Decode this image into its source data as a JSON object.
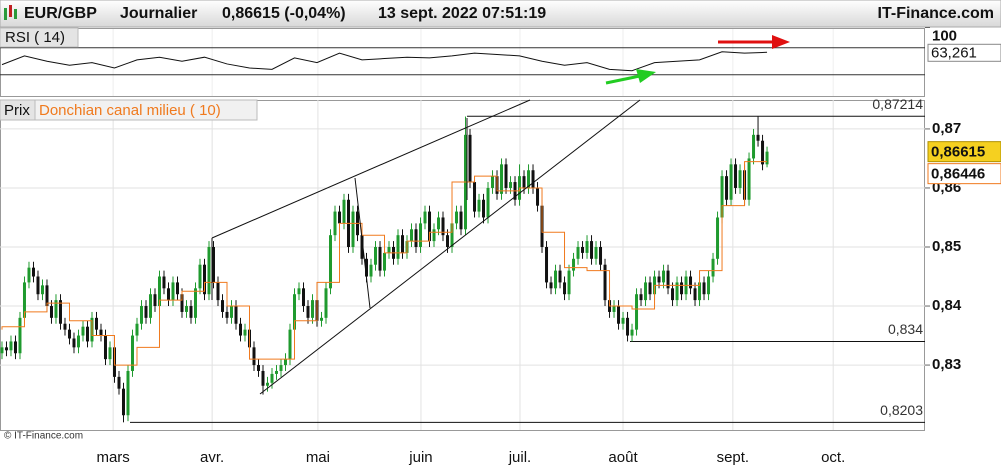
{
  "chart_data": {
    "type": "candlestick",
    "symbol": "EUR/GBP",
    "period": "Journalier",
    "quote": "0,86615 (-0,04%)",
    "date": "13 sept. 2022 07:51:19",
    "source": "IT-Finance.com",
    "copyright": "© IT-Finance.com",
    "price_name": "Prix",
    "up_color": "#1f9a2e",
    "down_color": "#111111",
    "ohlc": [
      [
        0.832,
        0.834,
        0.831,
        0.833
      ],
      [
        0.833,
        0.834,
        0.8315,
        0.8325
      ],
      [
        0.8325,
        0.835,
        0.8315,
        0.834
      ],
      [
        0.834,
        0.835,
        0.831,
        0.832
      ],
      [
        0.832,
        0.839,
        0.831,
        0.838
      ],
      [
        0.838,
        0.845,
        0.837,
        0.844
      ],
      [
        0.844,
        0.8475,
        0.843,
        0.8465
      ],
      [
        0.8465,
        0.8475,
        0.844,
        0.845
      ],
      [
        0.845,
        0.846,
        0.841,
        0.842
      ],
      [
        0.842,
        0.8445,
        0.841,
        0.8435
      ],
      [
        0.8435,
        0.8445,
        0.839,
        0.84
      ],
      [
        0.84,
        0.841,
        0.837,
        0.838
      ],
      [
        0.838,
        0.842,
        0.837,
        0.841
      ],
      [
        0.841,
        0.842,
        0.836,
        0.837
      ],
      [
        0.837,
        0.838,
        0.835,
        0.836
      ],
      [
        0.836,
        0.837,
        0.8335,
        0.8345
      ],
      [
        0.8345,
        0.8355,
        0.832,
        0.833
      ],
      [
        0.833,
        0.836,
        0.832,
        0.835
      ],
      [
        0.835,
        0.8375,
        0.834,
        0.8365
      ],
      [
        0.8365,
        0.8375,
        0.833,
        0.834
      ],
      [
        0.834,
        0.839,
        0.833,
        0.838
      ],
      [
        0.838,
        0.839,
        0.835,
        0.836
      ],
      [
        0.836,
        0.837,
        0.834,
        0.835
      ],
      [
        0.835,
        0.836,
        0.83,
        0.831
      ],
      [
        0.831,
        0.834,
        0.83,
        0.833
      ],
      [
        0.833,
        0.834,
        0.827,
        0.828
      ],
      [
        0.828,
        0.829,
        0.825,
        0.826
      ],
      [
        0.826,
        0.827,
        0.8203,
        0.8215
      ],
      [
        0.8215,
        0.83,
        0.8205,
        0.829
      ],
      [
        0.829,
        0.836,
        0.828,
        0.835
      ],
      [
        0.835,
        0.838,
        0.834,
        0.837
      ],
      [
        0.837,
        0.841,
        0.836,
        0.84
      ],
      [
        0.84,
        0.841,
        0.837,
        0.838
      ],
      [
        0.838,
        0.843,
        0.837,
        0.842
      ],
      [
        0.842,
        0.843,
        0.839,
        0.84
      ],
      [
        0.84,
        0.846,
        0.839,
        0.845
      ],
      [
        0.845,
        0.846,
        0.842,
        0.843
      ],
      [
        0.843,
        0.844,
        0.84,
        0.841
      ],
      [
        0.841,
        0.845,
        0.84,
        0.844
      ],
      [
        0.844,
        0.845,
        0.841,
        0.842
      ],
      [
        0.842,
        0.843,
        0.838,
        0.839
      ],
      [
        0.839,
        0.841,
        0.838,
        0.84
      ],
      [
        0.84,
        0.841,
        0.837,
        0.838
      ],
      [
        0.838,
        0.844,
        0.837,
        0.843
      ],
      [
        0.843,
        0.848,
        0.842,
        0.847
      ],
      [
        0.847,
        0.848,
        0.841,
        0.842
      ],
      [
        0.842,
        0.851,
        0.841,
        0.85
      ],
      [
        0.85,
        0.851,
        0.843,
        0.844
      ],
      [
        0.844,
        0.845,
        0.84,
        0.841
      ],
      [
        0.841,
        0.842,
        0.838,
        0.839
      ],
      [
        0.839,
        0.84,
        0.837,
        0.838
      ],
      [
        0.838,
        0.841,
        0.837,
        0.84
      ],
      [
        0.84,
        0.841,
        0.836,
        0.837
      ],
      [
        0.837,
        0.838,
        0.834,
        0.835
      ],
      [
        0.835,
        0.837,
        0.834,
        0.836
      ],
      [
        0.836,
        0.837,
        0.832,
        0.833
      ],
      [
        0.833,
        0.834,
        0.829,
        0.83
      ],
      [
        0.83,
        0.831,
        0.828,
        0.829
      ],
      [
        0.829,
        0.83,
        0.825,
        0.8265
      ],
      [
        0.8265,
        0.828,
        0.8255,
        0.827
      ],
      [
        0.827,
        0.8295,
        0.826,
        0.8285
      ],
      [
        0.8285,
        0.83,
        0.8275,
        0.829
      ],
      [
        0.829,
        0.831,
        0.828,
        0.83
      ],
      [
        0.83,
        0.832,
        0.829,
        0.831
      ],
      [
        0.831,
        0.837,
        0.83,
        0.836
      ],
      [
        0.836,
        0.843,
        0.835,
        0.842
      ],
      [
        0.842,
        0.844,
        0.841,
        0.843
      ],
      [
        0.843,
        0.844,
        0.839,
        0.84
      ],
      [
        0.84,
        0.841,
        0.837,
        0.838
      ],
      [
        0.838,
        0.842,
        0.837,
        0.841
      ],
      [
        0.841,
        0.842,
        0.8365,
        0.8375
      ],
      [
        0.8375,
        0.839,
        0.8365,
        0.838
      ],
      [
        0.838,
        0.844,
        0.837,
        0.843
      ],
      [
        0.843,
        0.853,
        0.842,
        0.852
      ],
      [
        0.852,
        0.857,
        0.851,
        0.856
      ],
      [
        0.856,
        0.857,
        0.853,
        0.854
      ],
      [
        0.854,
        0.859,
        0.853,
        0.858
      ],
      [
        0.858,
        0.859,
        0.849,
        0.85
      ],
      [
        0.85,
        0.857,
        0.849,
        0.856
      ],
      [
        0.856,
        0.857,
        0.851,
        0.852
      ],
      [
        0.852,
        0.853,
        0.847,
        0.848
      ],
      [
        0.848,
        0.849,
        0.844,
        0.845
      ],
      [
        0.845,
        0.848,
        0.844,
        0.847
      ],
      [
        0.847,
        0.851,
        0.846,
        0.85
      ],
      [
        0.85,
        0.851,
        0.845,
        0.846
      ],
      [
        0.846,
        0.85,
        0.845,
        0.849
      ],
      [
        0.849,
        0.851,
        0.848,
        0.85
      ],
      [
        0.85,
        0.851,
        0.847,
        0.848
      ],
      [
        0.848,
        0.853,
        0.847,
        0.852
      ],
      [
        0.852,
        0.853,
        0.848,
        0.849
      ],
      [
        0.849,
        0.852,
        0.848,
        0.851
      ],
      [
        0.851,
        0.854,
        0.85,
        0.853
      ],
      [
        0.853,
        0.854,
        0.849,
        0.85
      ],
      [
        0.85,
        0.855,
        0.849,
        0.854
      ],
      [
        0.854,
        0.857,
        0.853,
        0.856
      ],
      [
        0.856,
        0.857,
        0.85,
        0.851
      ],
      [
        0.851,
        0.854,
        0.85,
        0.853
      ],
      [
        0.853,
        0.856,
        0.852,
        0.855
      ],
      [
        0.855,
        0.856,
        0.851,
        0.852
      ],
      [
        0.852,
        0.853,
        0.849,
        0.85
      ],
      [
        0.85,
        0.855,
        0.849,
        0.854
      ],
      [
        0.854,
        0.857,
        0.853,
        0.856
      ],
      [
        0.856,
        0.857,
        0.852,
        0.853
      ],
      [
        0.853,
        0.8721,
        0.852,
        0.869
      ],
      [
        0.869,
        0.87,
        0.86,
        0.861
      ],
      [
        0.861,
        0.862,
        0.855,
        0.856
      ],
      [
        0.856,
        0.859,
        0.855,
        0.858
      ],
      [
        0.858,
        0.859,
        0.854,
        0.855
      ],
      [
        0.855,
        0.861,
        0.854,
        0.86
      ],
      [
        0.86,
        0.863,
        0.859,
        0.862
      ],
      [
        0.862,
        0.863,
        0.858,
        0.859
      ],
      [
        0.859,
        0.865,
        0.858,
        0.864
      ],
      [
        0.864,
        0.865,
        0.859,
        0.86
      ],
      [
        0.86,
        0.862,
        0.859,
        0.861
      ],
      [
        0.861,
        0.862,
        0.857,
        0.858
      ],
      [
        0.858,
        0.864,
        0.857,
        0.862
      ],
      [
        0.862,
        0.863,
        0.859,
        0.86
      ],
      [
        0.86,
        0.864,
        0.859,
        0.863
      ],
      [
        0.863,
        0.864,
        0.859,
        0.86
      ],
      [
        0.86,
        0.861,
        0.856,
        0.857
      ],
      [
        0.857,
        0.858,
        0.849,
        0.85
      ],
      [
        0.85,
        0.851,
        0.843,
        0.844
      ],
      [
        0.844,
        0.845,
        0.842,
        0.843
      ],
      [
        0.843,
        0.847,
        0.842,
        0.846
      ],
      [
        0.846,
        0.847,
        0.843,
        0.844
      ],
      [
        0.844,
        0.845,
        0.841,
        0.842
      ],
      [
        0.842,
        0.847,
        0.841,
        0.846
      ],
      [
        0.846,
        0.849,
        0.845,
        0.848
      ],
      [
        0.848,
        0.851,
        0.847,
        0.85
      ],
      [
        0.85,
        0.851,
        0.848,
        0.849
      ],
      [
        0.849,
        0.852,
        0.848,
        0.851
      ],
      [
        0.851,
        0.852,
        0.847,
        0.848
      ],
      [
        0.848,
        0.851,
        0.847,
        0.85
      ],
      [
        0.85,
        0.851,
        0.846,
        0.847
      ],
      [
        0.847,
        0.848,
        0.84,
        0.841
      ],
      [
        0.841,
        0.842,
        0.838,
        0.839
      ],
      [
        0.839,
        0.841,
        0.838,
        0.84
      ],
      [
        0.84,
        0.841,
        0.836,
        0.837
      ],
      [
        0.837,
        0.839,
        0.836,
        0.838
      ],
      [
        0.838,
        0.839,
        0.834,
        0.835
      ],
      [
        0.835,
        0.837,
        0.834,
        0.836
      ],
      [
        0.836,
        0.843,
        0.835,
        0.842
      ],
      [
        0.842,
        0.843,
        0.84,
        0.841
      ],
      [
        0.841,
        0.845,
        0.84,
        0.844
      ],
      [
        0.844,
        0.845,
        0.841,
        0.842
      ],
      [
        0.842,
        0.846,
        0.841,
        0.845
      ],
      [
        0.845,
        0.846,
        0.843,
        0.844
      ],
      [
        0.844,
        0.847,
        0.843,
        0.846
      ],
      [
        0.846,
        0.847,
        0.842,
        0.843
      ],
      [
        0.843,
        0.844,
        0.84,
        0.841
      ],
      [
        0.841,
        0.845,
        0.84,
        0.844
      ],
      [
        0.844,
        0.845,
        0.841,
        0.842
      ],
      [
        0.842,
        0.846,
        0.841,
        0.845
      ],
      [
        0.845,
        0.846,
        0.842,
        0.843
      ],
      [
        0.843,
        0.844,
        0.84,
        0.841
      ],
      [
        0.841,
        0.845,
        0.84,
        0.844
      ],
      [
        0.844,
        0.845,
        0.841,
        0.842
      ],
      [
        0.842,
        0.846,
        0.841,
        0.845
      ],
      [
        0.845,
        0.849,
        0.844,
        0.848
      ],
      [
        0.848,
        0.856,
        0.847,
        0.855
      ],
      [
        0.855,
        0.863,
        0.854,
        0.862
      ],
      [
        0.862,
        0.863,
        0.857,
        0.858
      ],
      [
        0.858,
        0.865,
        0.857,
        0.864
      ],
      [
        0.864,
        0.865,
        0.859,
        0.86
      ],
      [
        0.86,
        0.864,
        0.859,
        0.863
      ],
      [
        0.863,
        0.864,
        0.857,
        0.858
      ],
      [
        0.858,
        0.866,
        0.857,
        0.865
      ],
      [
        0.865,
        0.87,
        0.864,
        0.869
      ],
      [
        0.869,
        0.8721,
        0.867,
        0.868
      ],
      [
        0.868,
        0.869,
        0.863,
        0.864
      ],
      [
        0.864,
        0.867,
        0.8635,
        0.86615
      ]
    ],
    "xlim": [
      -0.44,
      205.1
    ],
    "xticks": [
      {
        "value": 24.7,
        "label": "mars"
      },
      {
        "value": 46.7,
        "label": "avr."
      },
      {
        "value": 70.2,
        "label": "mai"
      },
      {
        "value": 93.1,
        "label": "juin"
      },
      {
        "value": 115.1,
        "label": "juil."
      },
      {
        "value": 138,
        "label": "août"
      },
      {
        "value": 162.4,
        "label": "sept."
      },
      {
        "value": 184.7,
        "label": "oct."
      }
    ],
    "ylim": [
      0.819,
      0.8749
    ],
    "yticks": [
      {
        "value": 0.83,
        "label": "0,83"
      },
      {
        "value": 0.84,
        "label": "0,84"
      },
      {
        "value": 0.85,
        "label": "0,85"
      },
      {
        "value": 0.86,
        "label": "0,86"
      },
      {
        "value": 0.87,
        "label": "0,87"
      }
    ],
    "grid": true,
    "last_price": {
      "value": 0.86615,
      "label": "0,86615"
    },
    "levels": [
      {
        "value": 0.87214,
        "label": "0,87214"
      },
      {
        "value": 0.834,
        "label": "0,834"
      },
      {
        "value": 0.8203,
        "label": "0,8203"
      }
    ],
    "donchian": {
      "name": "Donchian canal milieu ( 10)",
      "color": "#f07a1e",
      "x": [
        0,
        5,
        10,
        15,
        20,
        25,
        30,
        35,
        40,
        45,
        50,
        55,
        60,
        65,
        70,
        75,
        80,
        85,
        90,
        95,
        100,
        105,
        110,
        115,
        120,
        125,
        130,
        135,
        140,
        145,
        150,
        155,
        160,
        165,
        170
      ],
      "values": [
        0.836,
        0.8365,
        0.839,
        0.8405,
        0.8375,
        0.835,
        0.83,
        0.833,
        0.841,
        0.8425,
        0.844,
        0.84,
        0.831,
        0.831,
        0.8375,
        0.844,
        0.854,
        0.852,
        0.849,
        0.851,
        0.8525,
        0.861,
        0.862,
        0.8595,
        0.86,
        0.8525,
        0.8465,
        0.846,
        0.84,
        0.8395,
        0.8435,
        0.8435,
        0.846,
        0.857,
        0.86446
      ],
      "last_label": "0,86446"
    },
    "rsi": {
      "name": "RSI ( 14)",
      "color": "#111111",
      "x": [
        0,
        5,
        10,
        15,
        20,
        25,
        30,
        35,
        40,
        45,
        50,
        55,
        60,
        65,
        70,
        75,
        80,
        85,
        90,
        95,
        100,
        105,
        110,
        115,
        120,
        125,
        130,
        135,
        140,
        145,
        150,
        155,
        160,
        165,
        170
      ],
      "values": [
        45,
        58,
        50,
        44,
        48,
        40,
        52,
        56,
        50,
        56,
        46,
        40,
        38,
        55,
        48,
        62,
        52,
        54,
        56,
        55,
        58,
        62,
        60,
        58,
        50,
        44,
        48,
        38,
        36,
        48,
        50,
        52,
        64,
        62,
        63.261
      ],
      "ylim": [
        0,
        100
      ],
      "yticks": [
        100
      ],
      "levels": [
        70,
        30
      ],
      "last_label": "63,261"
    }
  }
}
